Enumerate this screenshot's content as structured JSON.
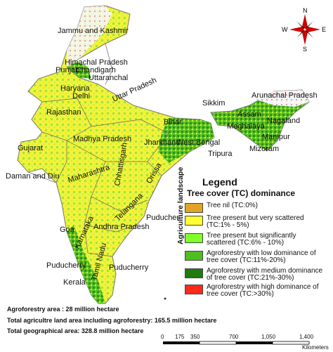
{
  "map": {
    "regions": [
      "Jammu and Kashmir",
      "Himachal Pradesh",
      "Punjab",
      "Chandigarh",
      "Uttaranchal",
      "Haryana",
      "Delhi",
      "Uttar Pradesh",
      "Rajasthan",
      "Sikkim",
      "Arunachal Pradesh",
      "Assam",
      "Nagaland",
      "Meghalaya",
      "Bihar",
      "Manipur",
      "Gujarat",
      "Madhya Pradesh",
      "Jharkhand",
      "West Bengal",
      "Tripura",
      "Mizoram",
      "Daman and Diu",
      "Chhattisgarh",
      "Orissa",
      "Maharashtra",
      "Telangana",
      "Puducherry",
      "Goa",
      "Andhra Pradesh",
      "Karnataka",
      "Puducherry",
      "Tamil Nadu",
      "Puducherry",
      "Kerala"
    ]
  },
  "legend": {
    "title": "Legend",
    "subtitle": "Tree cover (TC) dominance",
    "vertical_label": "Agriculture landscape",
    "items": [
      {
        "label": "Tree nil (TC:0%)",
        "color": "#e0a526"
      },
      {
        "label": "Tree present but very scattered (TC:1% - 5%)",
        "color": "#ffff33"
      },
      {
        "label": "Tree present but significantly scattered (TC:6% - 10%)",
        "color": "#80ff2a"
      },
      {
        "label": "Agroforestry with low dominance of tree cover (TC:11%-20%)",
        "color": "#4fbf1f"
      },
      {
        "label": "Agroforestry with medium dominance of tree cover (TC:21%-30%)",
        "color": "#1f7a10"
      },
      {
        "label": "Agroforestry with high dominance of tree cover (TC:>30%)",
        "color": "#ff2a1a"
      }
    ]
  },
  "stats": {
    "agroforestry_area": "Agroforestry area  : 28 million hectare",
    "total_agri": "Total agricultre land area including agroforestry: 165.5 million hectare",
    "total_geo": "Total geographical area: 328.8 million hectare"
  },
  "scale": {
    "ticks": [
      "0",
      "175",
      "350",
      "700",
      "1,050",
      "1,400"
    ],
    "unit": "Kilometers"
  },
  "compass": {
    "n": "N",
    "s": "S",
    "e": "E",
    "w": "W"
  },
  "colors": {
    "background": "#ffffff",
    "boundary": "#555555"
  }
}
